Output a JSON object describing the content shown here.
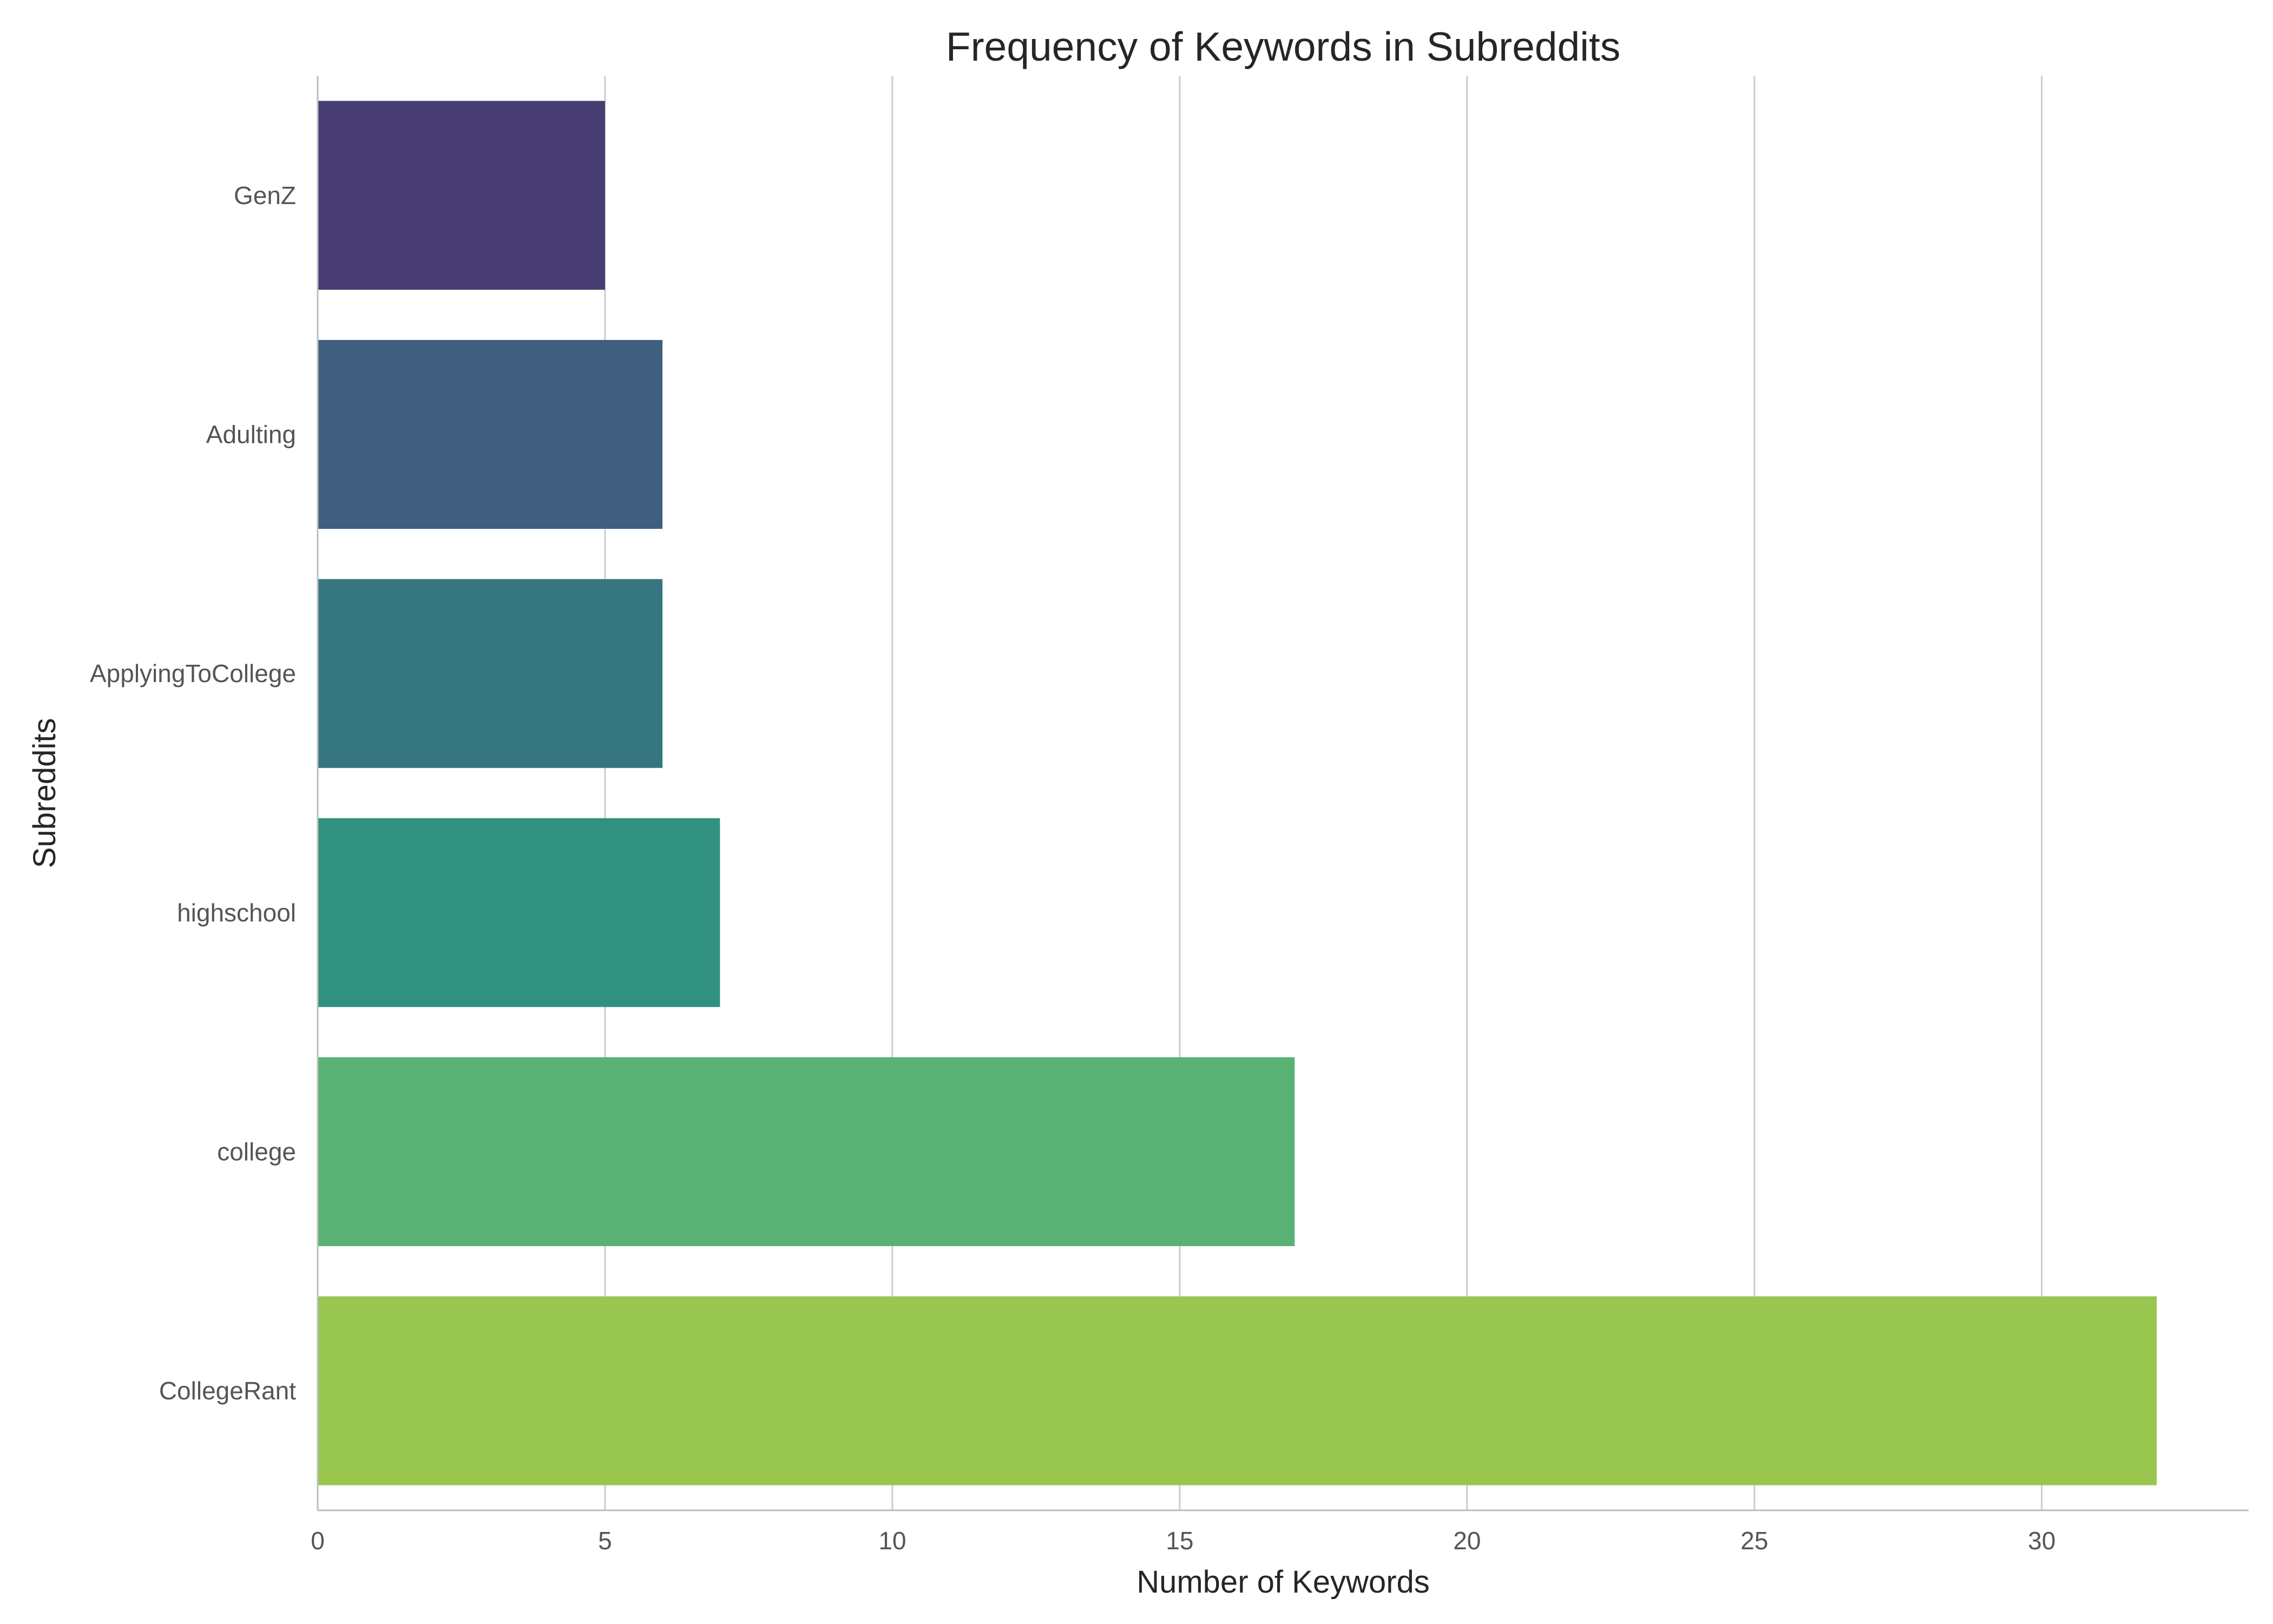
{
  "chart_data": {
    "type": "bar",
    "orientation": "horizontal",
    "title": "Frequency of Keywords in Subreddits",
    "xlabel": "Number of Keywords",
    "ylabel": "Subreddits",
    "categories": [
      "GenZ",
      "Adulting",
      "ApplyingToCollege",
      "highschool",
      "college",
      "CollegeRant"
    ],
    "values": [
      5,
      6,
      6,
      7,
      17,
      32
    ],
    "xlim": [
      0,
      33.6
    ],
    "xticks": [
      0,
      5,
      10,
      15,
      20,
      25,
      30
    ],
    "grid": "vertical",
    "colors": [
      "#483d73",
      "#405e80",
      "#357680",
      "#309180",
      "#5ab174",
      "#99c64e"
    ]
  }
}
